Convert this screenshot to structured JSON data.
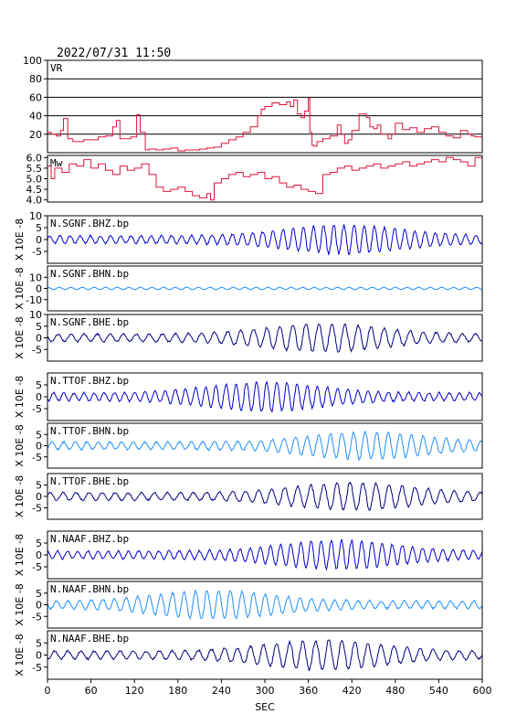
{
  "header": {
    "datetime": "2022/07/31  11:50"
  },
  "chart_data": {
    "type": "line",
    "xlabel": "SEC",
    "x_ticks": [
      0,
      60,
      120,
      180,
      240,
      300,
      360,
      420,
      480,
      540,
      600
    ],
    "xlim": [
      0,
      600
    ],
    "panels": [
      {
        "name": "VR",
        "ylim": [
          0,
          100
        ],
        "y_ticks": [
          20,
          40,
          60,
          80,
          100
        ],
        "grid": true,
        "color": "#dc143c",
        "x": [
          0,
          5,
          12,
          18,
          22,
          28,
          35,
          50,
          70,
          80,
          90,
          95,
          100,
          110,
          115,
          123,
          128,
          135,
          140,
          150,
          160,
          170,
          180,
          190,
          200,
          210,
          220,
          230,
          240,
          250,
          260,
          270,
          280,
          290,
          295,
          300,
          310,
          320,
          330,
          335,
          340,
          345,
          350,
          355,
          360,
          362,
          365,
          368,
          372,
          380,
          390,
          400,
          405,
          410,
          415,
          420,
          430,
          440,
          445,
          450,
          455,
          460,
          470,
          475,
          480,
          490,
          500,
          510,
          520,
          530,
          540,
          550,
          560,
          570,
          580,
          585,
          590,
          600
        ],
        "y": [
          22,
          20,
          18,
          24,
          37,
          15,
          12,
          14,
          17,
          18,
          28,
          35,
          15,
          15,
          17,
          41,
          22,
          3,
          4,
          3,
          4,
          5,
          2,
          3,
          3,
          4,
          5,
          6,
          10,
          14,
          17,
          22,
          28,
          40,
          47,
          50,
          54,
          52,
          55,
          50,
          57,
          42,
          38,
          45,
          59,
          22,
          8,
          7,
          12,
          15,
          18,
          30,
          20,
          10,
          14,
          24,
          42,
          38,
          28,
          26,
          30,
          20,
          15,
          20,
          32,
          25,
          27,
          22,
          26,
          28,
          22,
          18,
          16,
          24,
          20,
          18,
          17,
          16
        ]
      },
      {
        "name": "Mw",
        "ylim": [
          3.9,
          6.1
        ],
        "y_ticks": [
          4.0,
          4.5,
          5.0,
          5.5,
          6.0
        ],
        "color": "#dc143c",
        "x": [
          0,
          5,
          10,
          20,
          30,
          40,
          50,
          60,
          70,
          80,
          90,
          100,
          110,
          120,
          130,
          140,
          150,
          160,
          170,
          180,
          190,
          200,
          210,
          220,
          225,
          230,
          240,
          250,
          260,
          270,
          280,
          290,
          300,
          310,
          320,
          330,
          340,
          350,
          360,
          370,
          380,
          390,
          400,
          410,
          420,
          430,
          440,
          450,
          460,
          470,
          480,
          490,
          500,
          510,
          520,
          530,
          540,
          550,
          560,
          570,
          580,
          590,
          600
        ],
        "y": [
          5.6,
          5.0,
          5.5,
          5.3,
          5.7,
          5.6,
          5.9,
          5.5,
          5.7,
          5.4,
          5.2,
          5.6,
          5.4,
          5.5,
          5.7,
          5.2,
          4.6,
          4.4,
          4.5,
          4.6,
          4.4,
          4.2,
          4.1,
          4.3,
          4.0,
          4.8,
          5.0,
          5.2,
          5.3,
          5.1,
          5.2,
          5.3,
          5.0,
          5.1,
          4.8,
          4.6,
          4.7,
          4.5,
          4.4,
          4.3,
          5.2,
          5.3,
          5.5,
          5.6,
          5.4,
          5.5,
          5.6,
          5.7,
          5.5,
          5.6,
          5.7,
          5.8,
          5.6,
          5.7,
          5.8,
          5.9,
          5.8,
          6.0,
          5.9,
          5.8,
          5.6,
          6.0,
          5.7
        ]
      },
      {
        "name": "N.SGNF.BHZ.bp",
        "ylim": [
          -10,
          10
        ],
        "y_ticks": [
          -5,
          0,
          5,
          10
        ],
        "color": "#0000cd",
        "x": [],
        "y": []
      },
      {
        "name": "N.SGNF.BHN.bp",
        "ylim": [
          -20,
          20
        ],
        "y_ticks": [
          -10,
          0,
          10
        ],
        "color": "#1e90ff",
        "x": [],
        "y": []
      },
      {
        "name": "N.SGNF.BHE.bp",
        "ylim": [
          -10,
          10
        ],
        "y_ticks": [
          -5,
          0,
          5,
          10
        ],
        "color": "#000080",
        "x": [],
        "y": []
      },
      {
        "name": "N.TTOF.BHZ.bp",
        "ylim": [
          -10,
          10
        ],
        "y_ticks": [
          -5,
          0,
          5
        ],
        "color": "#0000cd",
        "x": [],
        "y": []
      },
      {
        "name": "N.TTOF.BHN.bp",
        "ylim": [
          -10,
          10
        ],
        "y_ticks": [
          -5,
          0,
          5
        ],
        "color": "#1e90ff",
        "x": [],
        "y": []
      },
      {
        "name": "N.TTOF.BHE.bp",
        "ylim": [
          -10,
          10
        ],
        "y_ticks": [
          -5,
          0,
          5
        ],
        "color": "#000080",
        "x": [],
        "y": []
      },
      {
        "name": "N.NAAF.BHZ.bp",
        "ylim": [
          -10,
          10
        ],
        "y_ticks": [
          -5,
          0,
          5
        ],
        "color": "#0000cd",
        "x": [],
        "y": []
      },
      {
        "name": "N.NAAF.BHN.bp",
        "ylim": [
          -10,
          10
        ],
        "y_ticks": [
          -5,
          0,
          5
        ],
        "color": "#1e90ff",
        "x": [],
        "y": []
      },
      {
        "name": "N.NAAF.BHE.bp",
        "ylim": [
          -10,
          10
        ],
        "y_ticks": [
          -5,
          0,
          5
        ],
        "color": "#000080",
        "x": [],
        "y": []
      }
    ],
    "y_unit_label": "X 10E -8"
  }
}
